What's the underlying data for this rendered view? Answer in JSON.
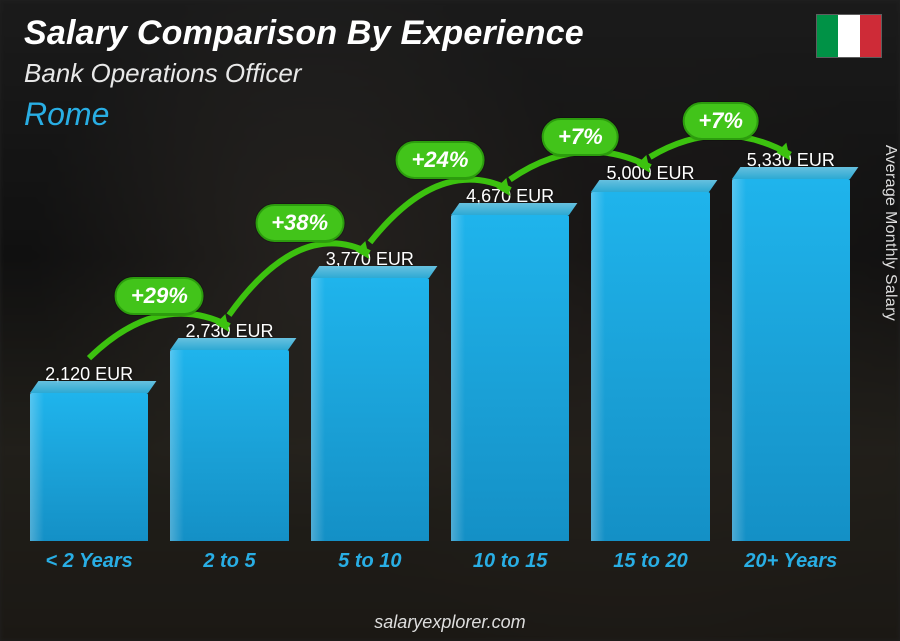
{
  "header": {
    "title": "Salary Comparison By Experience",
    "subtitle": "Bank Operations Officer",
    "city": "Rome",
    "city_color": "#29aee4"
  },
  "flag": {
    "country": "Italy",
    "stripes": [
      "#009246",
      "#ffffff",
      "#ce2b37"
    ]
  },
  "y_axis_label": "Average Monthly Salary",
  "footer": "salaryexplorer.com",
  "chart": {
    "type": "bar",
    "bar_color": "#1aa0d6",
    "category_label_color": "#29aee4",
    "value_label_color": "#ffffff",
    "growth_badge_bg": "#42c41a",
    "growth_badge_border": "#2c9c0e",
    "arrow_color": "#3cc20f",
    "max_value": 5600,
    "currency_suffix": " EUR",
    "bars": [
      {
        "category": "< 2 Years",
        "value": 2120,
        "value_label": "2,120 EUR"
      },
      {
        "category": "2 to 5",
        "value": 2730,
        "value_label": "2,730 EUR",
        "growth": "+29%"
      },
      {
        "category": "5 to 10",
        "value": 3770,
        "value_label": "3,770 EUR",
        "growth": "+38%"
      },
      {
        "category": "10 to 15",
        "value": 4670,
        "value_label": "4,670 EUR",
        "growth": "+24%"
      },
      {
        "category": "15 to 20",
        "value": 5000,
        "value_label": "5,000 EUR",
        "growth": "+7%"
      },
      {
        "category": "20+ Years",
        "value": 5330,
        "value_label": "5,330 EUR",
        "growth": "+7%"
      }
    ],
    "growth_badge_fontsize": 22,
    "value_label_fontsize": 18,
    "category_label_fontsize": 20
  }
}
